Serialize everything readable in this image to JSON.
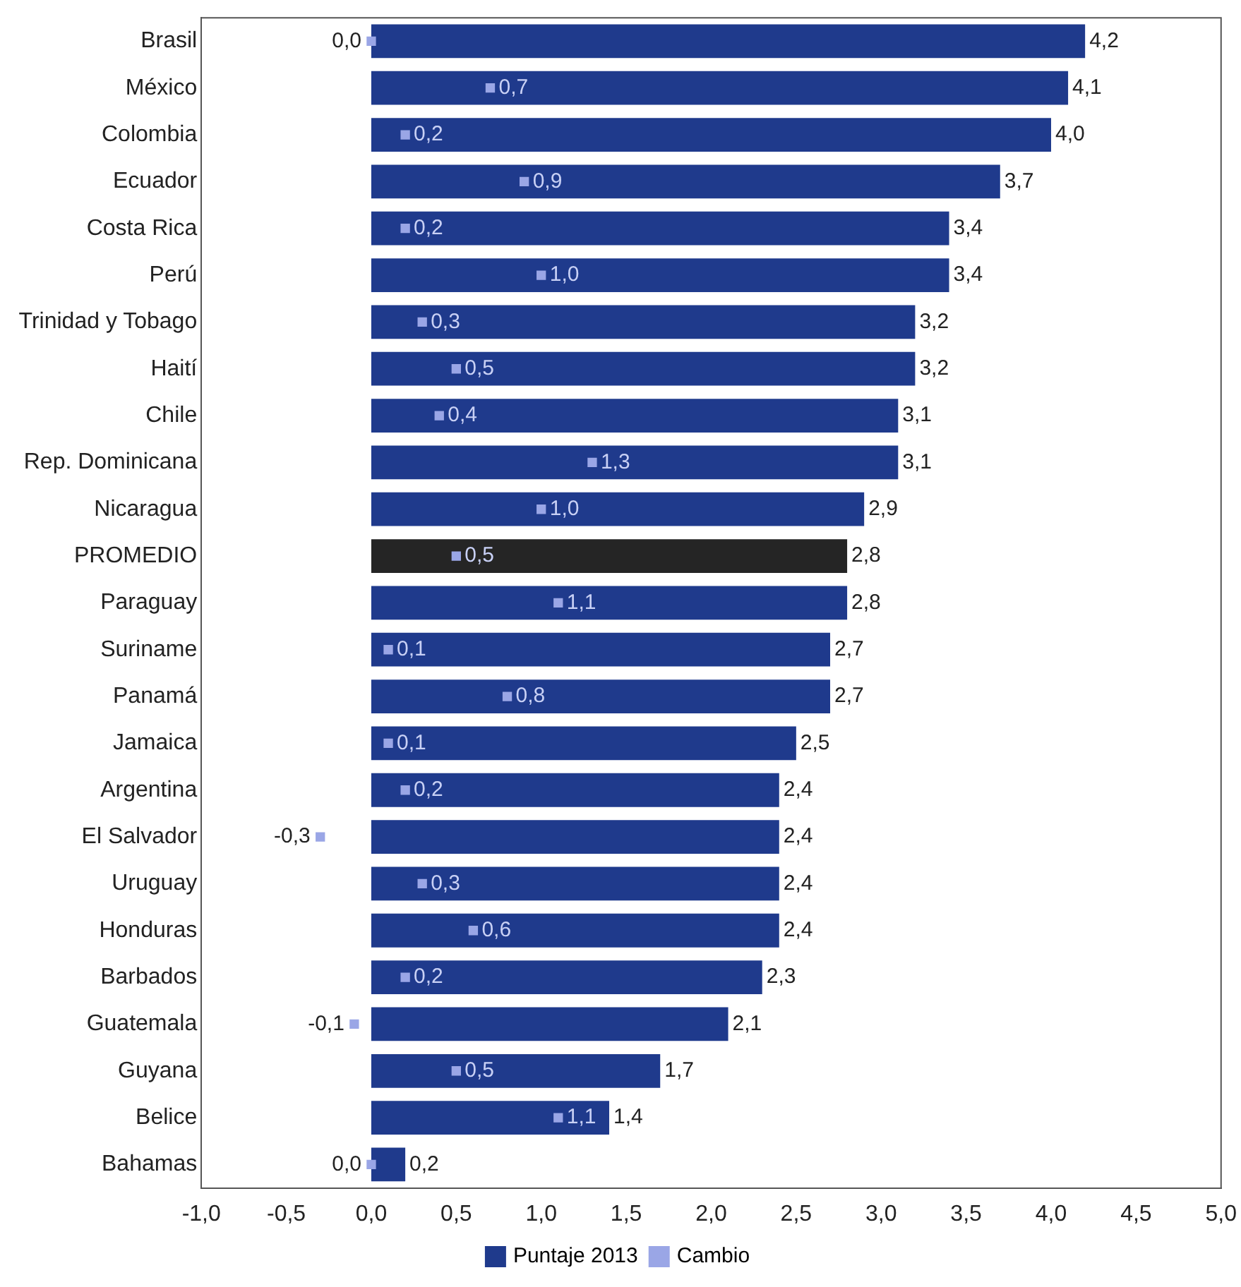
{
  "chart_data": {
    "type": "bar",
    "orientation": "horizontal",
    "categories": [
      "Brasil",
      "México",
      "Colombia",
      "Ecuador",
      "Costa Rica",
      "Perú",
      "Trinidad y Tobago",
      "Haití",
      "Chile",
      "Rep. Dominicana",
      "Nicaragua",
      "PROMEDIO",
      "Paraguay",
      "Suriname",
      "Panamá",
      "Jamaica",
      "Argentina",
      "El Salvador",
      "Uruguay",
      "Honduras",
      "Barbados",
      "Guatemala",
      "Guyana",
      "Belice",
      "Bahamas"
    ],
    "series": [
      {
        "name": "Puntaje 2013",
        "color": "#1f3a8c",
        "colors": [
          "#1f3a8c",
          "#1f3a8c",
          "#1f3a8c",
          "#1f3a8c",
          "#1f3a8c",
          "#1f3a8c",
          "#1f3a8c",
          "#1f3a8c",
          "#1f3a8c",
          "#1f3a8c",
          "#1f3a8c",
          "#252525",
          "#1f3a8c",
          "#1f3a8c",
          "#1f3a8c",
          "#1f3a8c",
          "#1f3a8c",
          "#1f3a8c",
          "#1f3a8c",
          "#1f3a8c",
          "#1f3a8c",
          "#1f3a8c",
          "#1f3a8c",
          "#1f3a8c",
          "#1f3a8c"
        ],
        "values": [
          4.2,
          4.1,
          4.0,
          3.7,
          3.4,
          3.4,
          3.2,
          3.2,
          3.1,
          3.1,
          2.9,
          2.8,
          2.8,
          2.7,
          2.7,
          2.5,
          2.4,
          2.4,
          2.4,
          2.4,
          2.3,
          2.1,
          1.7,
          1.4,
          0.2
        ],
        "value_labels": [
          "4,2",
          "4,1",
          "4,0",
          "3,7",
          "3,4",
          "3,4",
          "3,2",
          "3,2",
          "3,1",
          "3,1",
          "2,9",
          "2,8",
          "2,8",
          "2,7",
          "2,7",
          "2,5",
          "2,4",
          "2,4",
          "2,4",
          "2,4",
          "2,3",
          "2,1",
          "1,7",
          "1,4",
          "0,2"
        ]
      },
      {
        "name": "Cambio",
        "type": "scatter",
        "marker": "square",
        "color": "#9aa6e6",
        "values": [
          0.0,
          0.7,
          0.2,
          0.9,
          0.2,
          1.0,
          0.3,
          0.5,
          0.4,
          1.3,
          1.0,
          0.5,
          1.1,
          0.1,
          0.8,
          0.1,
          0.2,
          -0.3,
          0.3,
          0.6,
          0.2,
          -0.1,
          0.5,
          1.1,
          0.0
        ],
        "value_labels": [
          "0,0",
          "0,7",
          "0,2",
          "0,9",
          "0,2",
          "1,0",
          "0,3",
          "0,5",
          "0,4",
          "1,3",
          "1,0",
          "0,5",
          "1,1",
          "0,1",
          "0,8",
          "0,1",
          "0,2",
          "-0,3",
          "0,3",
          "0,6",
          "0,2",
          "-0,1",
          "0,5",
          "1,1",
          "0,0"
        ]
      }
    ],
    "xlim": [
      -1,
      5
    ],
    "xticks": [
      {
        "value": -1,
        "label": "-1,0"
      },
      {
        "value": -0.5,
        "label": "-0,5"
      },
      {
        "value": 0,
        "label": "0,0"
      },
      {
        "value": 0.5,
        "label": "0,5"
      },
      {
        "value": 1,
        "label": "1,0"
      },
      {
        "value": 1.5,
        "label": "1,5"
      },
      {
        "value": 2,
        "label": "2,0"
      },
      {
        "value": 2.5,
        "label": "2,5"
      },
      {
        "value": 3,
        "label": "3,0"
      },
      {
        "value": 3.5,
        "label": "3,5"
      },
      {
        "value": 4,
        "label": "4,0"
      },
      {
        "value": 4.5,
        "label": "4,5"
      },
      {
        "value": 5,
        "label": "5,0"
      }
    ],
    "grid": false,
    "legend": "bottom"
  }
}
